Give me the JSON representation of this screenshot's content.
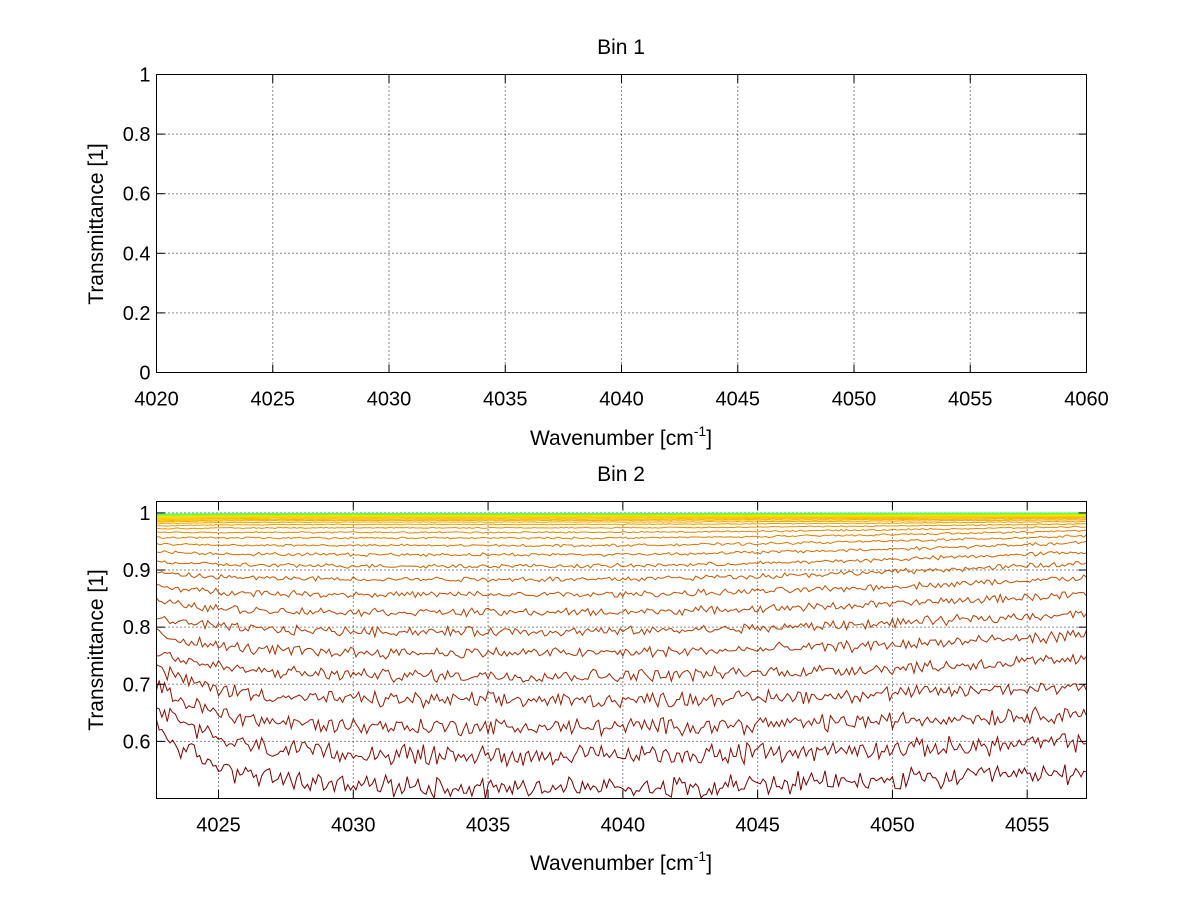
{
  "chart_data": [
    {
      "type": "line",
      "title": "Bin 1",
      "xlabel": "Wavenumber [cm",
      "xlabel_sup": "-1",
      "xlabel_close": "]",
      "ylabel": "Transmittance [1]",
      "xlim": [
        4020,
        4060
      ],
      "ylim": [
        0,
        1
      ],
      "xticks": [
        4020,
        4025,
        4030,
        4035,
        4040,
        4045,
        4050,
        4055,
        4060
      ],
      "yticks": [
        0,
        0.2,
        0.4,
        0.6,
        0.8,
        1
      ],
      "xtick_labels": [
        "4020",
        "4025",
        "4030",
        "4035",
        "4040",
        "4045",
        "4050",
        "4055",
        "4060"
      ],
      "ytick_labels": [
        "0",
        "0.2",
        "0.4",
        "0.6",
        "0.8",
        "1"
      ],
      "grid": true,
      "series": []
    },
    {
      "type": "line",
      "title": "Bin 2",
      "xlabel": "Wavenumber [cm",
      "xlabel_sup": "-1",
      "xlabel_close": "]",
      "ylabel": "Transmittance [1]",
      "xlim": [
        4022.7,
        4057.2
      ],
      "ylim": [
        0.5,
        1.02
      ],
      "xticks": [
        4025,
        4030,
        4035,
        4040,
        4045,
        4050,
        4055
      ],
      "yticks": [
        0.6,
        0.7,
        0.8,
        0.9,
        1
      ],
      "xtick_labels": [
        "4025",
        "4030",
        "4035",
        "4040",
        "4045",
        "4050",
        "4055"
      ],
      "ytick_labels": [
        "0.6",
        "0.7",
        "0.8",
        "0.9",
        "1"
      ],
      "grid": true,
      "x_sample_step": 0.1,
      "noise_amplitude_scale": 0.06,
      "series": [
        {
          "color": "#7a0000",
          "baseline": 0.52,
          "start": 0.625,
          "end": 0.545
        },
        {
          "color": "#8a0a00",
          "baseline": 0.575,
          "start": 0.662,
          "end": 0.6
        },
        {
          "color": "#941400",
          "baseline": 0.625,
          "start": 0.697,
          "end": 0.65
        },
        {
          "color": "#9c1c00",
          "baseline": 0.672,
          "start": 0.73,
          "end": 0.697
        },
        {
          "color": "#a42600",
          "baseline": 0.715,
          "start": 0.76,
          "end": 0.744
        },
        {
          "color": "#ac3000",
          "baseline": 0.755,
          "start": 0.79,
          "end": 0.786
        },
        {
          "color": "#b43a00",
          "baseline": 0.792,
          "start": 0.818,
          "end": 0.825
        },
        {
          "color": "#bc4400",
          "baseline": 0.826,
          "start": 0.846,
          "end": 0.858
        },
        {
          "color": "#c44e00",
          "baseline": 0.857,
          "start": 0.872,
          "end": 0.887
        },
        {
          "color": "#ca5800",
          "baseline": 0.884,
          "start": 0.895,
          "end": 0.912
        },
        {
          "color": "#d06200",
          "baseline": 0.907,
          "start": 0.915,
          "end": 0.932
        },
        {
          "color": "#d66c00",
          "baseline": 0.927,
          "start": 0.932,
          "end": 0.948
        },
        {
          "color": "#dc7600",
          "baseline": 0.943,
          "start": 0.946,
          "end": 0.96
        },
        {
          "color": "#e08000",
          "baseline": 0.956,
          "start": 0.957,
          "end": 0.969
        },
        {
          "color": "#e48a00",
          "baseline": 0.966,
          "start": 0.966,
          "end": 0.976
        },
        {
          "color": "#e89400",
          "baseline": 0.974,
          "start": 0.972,
          "end": 0.981
        },
        {
          "color": "#ec9e00",
          "baseline": 0.98,
          "start": 0.977,
          "end": 0.985
        },
        {
          "color": "#f0a800",
          "baseline": 0.984,
          "start": 0.981,
          "end": 0.988
        },
        {
          "color": "#f4b000",
          "baseline": 0.987,
          "start": 0.984,
          "end": 0.99
        },
        {
          "color": "#f8b800",
          "baseline": 0.989,
          "start": 0.986,
          "end": 0.992
        },
        {
          "color": "#fcc000",
          "baseline": 0.991,
          "start": 0.988,
          "end": 0.993
        },
        {
          "color": "#ffc800",
          "baseline": 0.992,
          "start": 0.99,
          "end": 0.994
        },
        {
          "color": "#ffd000",
          "baseline": 0.993,
          "start": 0.991,
          "end": 0.995
        },
        {
          "color": "#ffd800",
          "baseline": 0.994,
          "start": 0.992,
          "end": 0.995
        },
        {
          "color": "#ffe000",
          "baseline": 0.995,
          "start": 0.993,
          "end": 0.996
        },
        {
          "color": "#f0e800",
          "baseline": 0.996,
          "start": 0.994,
          "end": 0.997
        },
        {
          "color": "#d8f000",
          "baseline": 0.996,
          "start": 0.995,
          "end": 0.997
        },
        {
          "color": "#c0f400",
          "baseline": 0.997,
          "start": 0.995,
          "end": 0.998
        },
        {
          "color": "#a8f800",
          "baseline": 0.997,
          "start": 0.996,
          "end": 0.998
        },
        {
          "color": "#90fc00",
          "baseline": 0.998,
          "start": 0.996,
          "end": 0.999
        },
        {
          "color": "#78ff20",
          "baseline": 0.998,
          "start": 0.997,
          "end": 0.999
        },
        {
          "color": "#60ff50",
          "baseline": 0.999,
          "start": 0.997,
          "end": 1.0
        },
        {
          "color": "#50ff80",
          "baseline": 0.999,
          "start": 0.998,
          "end": 1.0
        }
      ]
    }
  ]
}
